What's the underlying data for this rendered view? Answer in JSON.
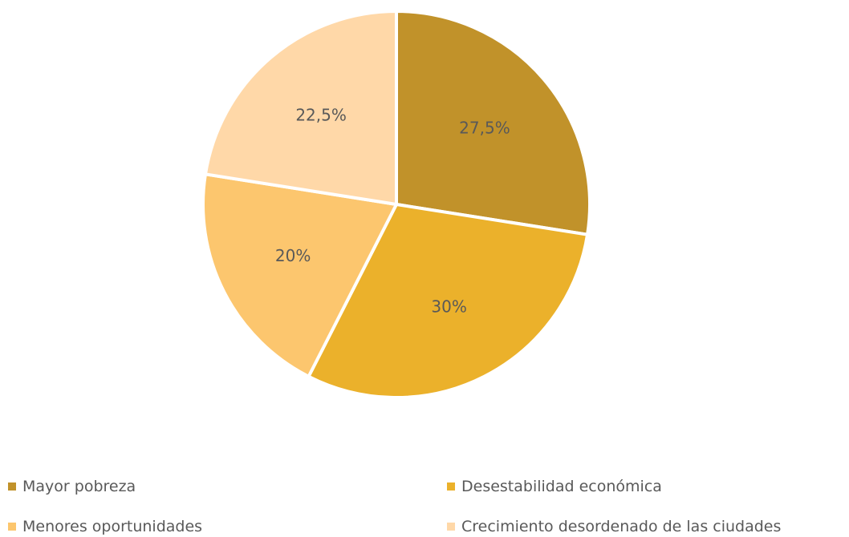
{
  "chart_data": {
    "type": "pie",
    "categories": [
      "Mayor pobreza",
      "Desestabilidad económica",
      "Menores oportunidades",
      "Crecimiento desordenado de las ciudades"
    ],
    "values": [
      27.5,
      30,
      20,
      22.5
    ],
    "data_labels": [
      "27,5%",
      "30%",
      "20%",
      "22,5%"
    ],
    "colors": [
      "#C1922A",
      "#EBB12B",
      "#FCC66E",
      "#FFD8A8"
    ],
    "legend_position": "bottom",
    "title": ""
  }
}
